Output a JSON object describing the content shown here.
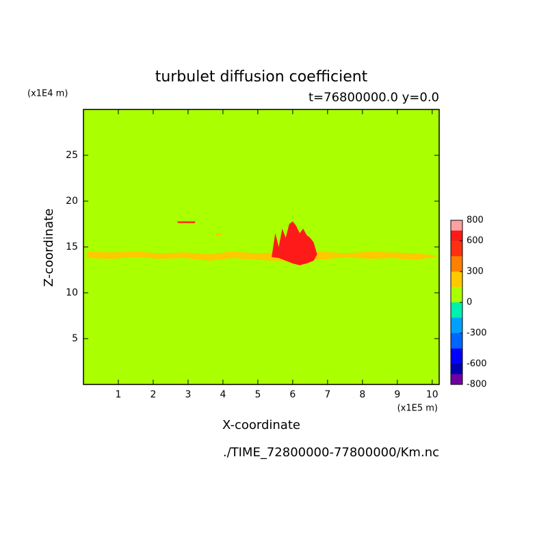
{
  "chart_data": {
    "type": "contour",
    "title": "turbulet diffusion coefficient",
    "subtitle": "t=76800000.0 y=0.0",
    "x_unit": "(x1E5 m)",
    "y_unit": "(x1E4 m)",
    "xlabel": "X-coordinate",
    "ylabel": "Z-coordinate",
    "footer": "./TIME_72800000-77800000/Km.nc",
    "xlim": [
      0,
      10.2
    ],
    "ylim": [
      0,
      30
    ],
    "xticks": [
      1,
      2,
      3,
      4,
      5,
      6,
      7,
      8,
      9,
      10
    ],
    "yticks": [
      5,
      10,
      15,
      20,
      25
    ],
    "colorbar": {
      "lim": [
        -800,
        800
      ],
      "ticks": [
        -800,
        -600,
        -300,
        0,
        300,
        600,
        800
      ],
      "levels": [
        -800,
        -700,
        -600,
        -450,
        -300,
        -150,
        0,
        150,
        300,
        450,
        600,
        700,
        800
      ],
      "colors": [
        "#7000a0",
        "#0000b0",
        "#0000ff",
        "#0064ff",
        "#00a0ff",
        "#00f0b0",
        "#aaff00",
        "#ffc800",
        "#ff8000",
        "#ff3010",
        "#ff1a1a",
        "#ffa0a0"
      ]
    },
    "background_level": 50,
    "patches": [
      {
        "level": 200,
        "x": [
          0.1,
          0.8,
          1.5,
          2.2,
          2.9,
          3.6,
          4.3,
          5.0,
          5.5,
          6.8,
          7.5,
          8.2,
          8.9,
          9.5,
          10.1,
          10.1,
          9.5,
          8.9,
          8.2,
          7.5,
          6.8,
          5.5,
          5.0,
          4.3,
          3.6,
          2.9,
          2.2,
          1.5,
          0.8,
          0.1
        ],
        "z": [
          14.5,
          14.4,
          14.5,
          14.3,
          14.4,
          14.2,
          14.5,
          14.3,
          14.4,
          14.5,
          14.3,
          14.5,
          14.4,
          14.3,
          14.1,
          13.9,
          13.6,
          13.8,
          13.7,
          13.9,
          13.6,
          13.5,
          13.6,
          13.8,
          13.5,
          13.8,
          13.7,
          13.9,
          13.7,
          13.8
        ]
      },
      {
        "level": 650,
        "x": [
          5.4,
          5.5,
          5.6,
          5.7,
          5.8,
          5.9,
          6.0,
          6.1,
          6.2,
          6.3,
          6.4,
          6.5,
          6.6,
          6.7,
          6.6,
          6.4,
          6.2,
          6.0,
          5.8,
          5.6,
          5.4
        ],
        "z": [
          14.0,
          16.5,
          15.0,
          17.0,
          16.0,
          17.5,
          17.8,
          17.3,
          16.5,
          17.0,
          16.3,
          16.0,
          15.5,
          14.2,
          13.5,
          13.2,
          13.0,
          13.2,
          13.5,
          13.8,
          13.9
        ]
      },
      {
        "level": 500,
        "x": [
          2.7,
          3.2,
          3.2,
          2.7
        ],
        "z": [
          17.6,
          17.6,
          17.8,
          17.8
        ]
      },
      {
        "level": 200,
        "x": [
          3.8,
          3.95,
          3.95,
          3.8
        ],
        "z": [
          16.2,
          16.2,
          16.5,
          16.5
        ]
      }
    ]
  }
}
